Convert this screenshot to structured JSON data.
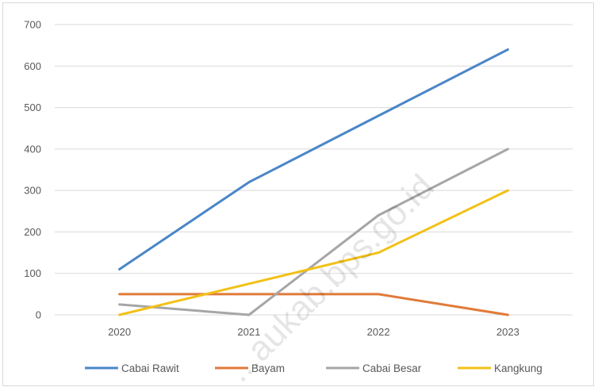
{
  "chart_data": {
    "type": "line",
    "categories": [
      "2020",
      "2021",
      "2022",
      "2023"
    ],
    "series": [
      {
        "name": "Cabai Rawit",
        "color": "#4a86c8",
        "values": [
          110,
          320,
          480,
          640
        ]
      },
      {
        "name": "Bayam",
        "color": "#e07b39",
        "values": [
          50,
          50,
          50,
          0
        ]
      },
      {
        "name": "Cabai Besar",
        "color": "#a6a6a6",
        "values": [
          25,
          0,
          240,
          400
        ]
      },
      {
        "name": "Kangkung",
        "color": "#f2c118",
        "values": [
          0,
          75,
          150,
          300
        ]
      }
    ],
    "ylim": [
      0,
      700
    ],
    "yticks": [
      0,
      100,
      200,
      300,
      400,
      500,
      600,
      700
    ],
    "grid": true,
    "legend_position": "bottom",
    "watermark": "...aukab.bps.go.id"
  }
}
